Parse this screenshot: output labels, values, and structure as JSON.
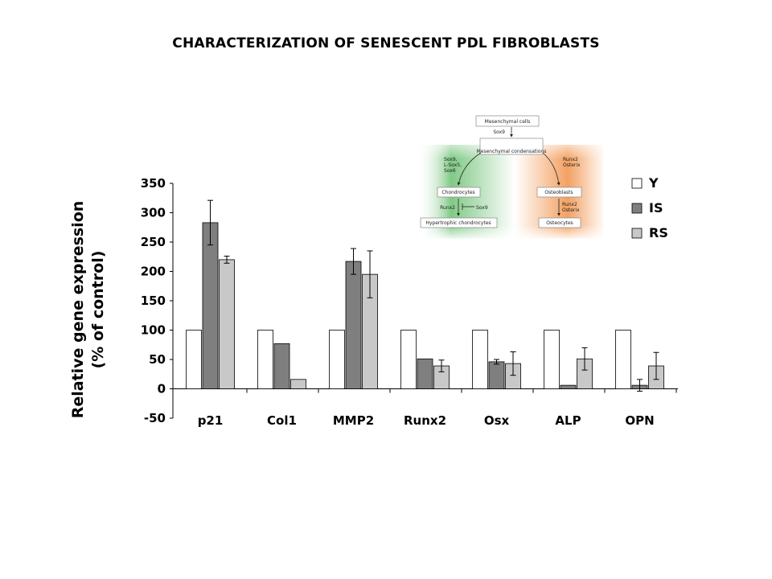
{
  "slide": {
    "title": "CHARACTERIZATION OF SENESCENT PDL FIBROBLASTS"
  },
  "chart_data": {
    "type": "bar",
    "title": "",
    "xlabel": "",
    "ylabel": "Relative gene expression (% of control)",
    "ylabel_lines": [
      "Relative gene expression",
      "(% of control)"
    ],
    "ylim": [
      -50,
      350
    ],
    "yticks": [
      -50,
      0,
      50,
      100,
      150,
      200,
      250,
      300,
      350
    ],
    "grid": false,
    "legend_position": "right",
    "categories": [
      "p21",
      "Col1",
      "MMP2",
      "Runx2",
      "Osx",
      "ALP",
      "OPN"
    ],
    "series": [
      {
        "name": "Y",
        "color": "#ffffff",
        "values": [
          100,
          100,
          100,
          100,
          100,
          100,
          100
        ],
        "errors": [
          null,
          null,
          null,
          null,
          null,
          null,
          null
        ]
      },
      {
        "name": "IS",
        "color": "#7f7f7f",
        "values": [
          283,
          77,
          217,
          51,
          46,
          6,
          6
        ],
        "errors": [
          38,
          null,
          22,
          null,
          4,
          null,
          10
        ]
      },
      {
        "name": "RS",
        "color": "#c8c8c8",
        "values": [
          220,
          16,
          195,
          39,
          43,
          51,
          39
        ],
        "errors": [
          6,
          null,
          40,
          10,
          20,
          19,
          23
        ]
      }
    ]
  },
  "inset_diagram": {
    "nodes": {
      "mesenchymal_cells": "Mesenchymal cells",
      "sox9_top": "Sox9",
      "mesenchymal_condensations": "Mesenchymal condensations",
      "left_factors": [
        "Sox9,",
        "L-Sox5,",
        "Sox6"
      ],
      "right_factors": [
        "Runx2",
        "Osterix"
      ],
      "chondrocytes": "Chondrocytes",
      "osteoblasts": "Osteoblasts",
      "runx2_left": "Runx2",
      "sox9_inhibit": "Sox9",
      "runx2_osterix": [
        "Runx2",
        "Osterix"
      ],
      "hypertrophic": "Hypertrophic chondrocytes",
      "osteocytes": "Osteocytes"
    },
    "colors": {
      "left_bg": "#56b75e",
      "right_bg": "#f08a3c"
    }
  }
}
